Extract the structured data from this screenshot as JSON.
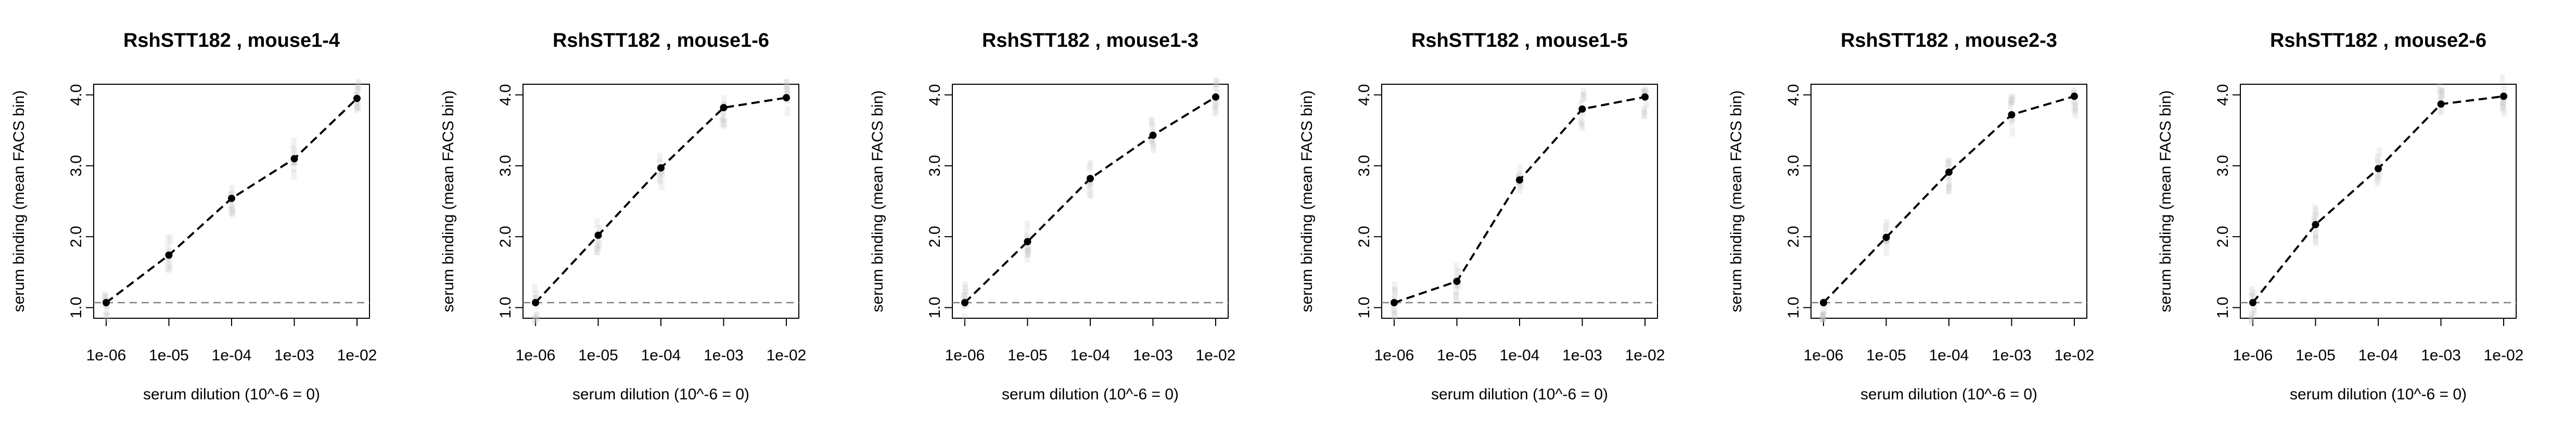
{
  "chart_data": [
    {
      "type": "line",
      "title": "RshSTT182 , mouse1-4",
      "xlabel": "serum dilution (10^-6 = 0)",
      "ylabel": "serum binding (mean FACS bin)",
      "x": [
        1e-06,
        1e-05,
        0.0001,
        0.001,
        0.01
      ],
      "x_tick_labels": [
        "1e-06",
        "1e-05",
        "1e-04",
        "1e-03",
        "1e-02"
      ],
      "y_ticks": [
        1.0,
        2.0,
        3.0,
        4.0
      ],
      "y_tick_labels": [
        "1.0",
        "2.0",
        "3.0",
        "4.0"
      ],
      "ylim": [
        0.85,
        4.15
      ],
      "series": [
        {
          "name": "mean",
          "values": [
            1.07,
            1.74,
            2.54,
            3.1,
            3.95
          ]
        }
      ],
      "baseline": 1.07,
      "grid": false
    },
    {
      "type": "line",
      "title": "RshSTT182 , mouse1-6",
      "xlabel": "serum dilution (10^-6 = 0)",
      "ylabel": "serum binding (mean FACS bin)",
      "x": [
        1e-06,
        1e-05,
        0.0001,
        0.001,
        0.01
      ],
      "x_tick_labels": [
        "1e-06",
        "1e-05",
        "1e-04",
        "1e-03",
        "1e-02"
      ],
      "y_ticks": [
        1.0,
        2.0,
        3.0,
        4.0
      ],
      "y_tick_labels": [
        "1.0",
        "2.0",
        "3.0",
        "4.0"
      ],
      "ylim": [
        0.85,
        4.15
      ],
      "series": [
        {
          "name": "mean",
          "values": [
            1.07,
            2.02,
            2.97,
            3.82,
            3.96
          ]
        }
      ],
      "baseline": 1.07,
      "grid": false
    },
    {
      "type": "line",
      "title": "RshSTT182 , mouse1-3",
      "xlabel": "serum dilution (10^-6 = 0)",
      "ylabel": "serum binding (mean FACS bin)",
      "x": [
        1e-06,
        1e-05,
        0.0001,
        0.001,
        0.01
      ],
      "x_tick_labels": [
        "1e-06",
        "1e-05",
        "1e-04",
        "1e-03",
        "1e-02"
      ],
      "y_ticks": [
        1.0,
        2.0,
        3.0,
        4.0
      ],
      "y_tick_labels": [
        "1.0",
        "2.0",
        "3.0",
        "4.0"
      ],
      "ylim": [
        0.85,
        4.15
      ],
      "series": [
        {
          "name": "mean",
          "values": [
            1.07,
            1.93,
            2.82,
            3.43,
            3.97
          ]
        }
      ],
      "baseline": 1.07,
      "grid": false
    },
    {
      "type": "line",
      "title": "RshSTT182 , mouse1-5",
      "xlabel": "serum dilution (10^-6 = 0)",
      "ylabel": "serum binding (mean FACS bin)",
      "x": [
        1e-06,
        1e-05,
        0.0001,
        0.001,
        0.01
      ],
      "x_tick_labels": [
        "1e-06",
        "1e-05",
        "1e-04",
        "1e-03",
        "1e-02"
      ],
      "y_ticks": [
        1.0,
        2.0,
        3.0,
        4.0
      ],
      "y_tick_labels": [
        "1.0",
        "2.0",
        "3.0",
        "4.0"
      ],
      "ylim": [
        0.85,
        4.15
      ],
      "series": [
        {
          "name": "mean",
          "values": [
            1.07,
            1.37,
            2.8,
            3.8,
            3.97
          ]
        }
      ],
      "baseline": 1.07,
      "grid": false
    },
    {
      "type": "line",
      "title": "RshSTT182 , mouse2-3",
      "xlabel": "serum dilution (10^-6 = 0)",
      "ylabel": "serum binding (mean FACS bin)",
      "x": [
        1e-06,
        1e-05,
        0.0001,
        0.001,
        0.01
      ],
      "x_tick_labels": [
        "1e-06",
        "1e-05",
        "1e-04",
        "1e-03",
        "1e-02"
      ],
      "y_ticks": [
        1.0,
        2.0,
        3.0,
        4.0
      ],
      "y_tick_labels": [
        "1.0",
        "2.0",
        "3.0",
        "4.0"
      ],
      "ylim": [
        0.85,
        4.15
      ],
      "series": [
        {
          "name": "mean",
          "values": [
            1.07,
            1.99,
            2.91,
            3.72,
            3.98
          ]
        }
      ],
      "baseline": 1.07,
      "grid": false
    },
    {
      "type": "line",
      "title": "RshSTT182 , mouse2-6",
      "xlabel": "serum dilution (10^-6 = 0)",
      "ylabel": "serum binding (mean FACS bin)",
      "x": [
        1e-06,
        1e-05,
        0.0001,
        0.001,
        0.01
      ],
      "x_tick_labels": [
        "1e-06",
        "1e-05",
        "1e-04",
        "1e-03",
        "1e-02"
      ],
      "y_ticks": [
        1.0,
        2.0,
        3.0,
        4.0
      ],
      "y_tick_labels": [
        "1.0",
        "2.0",
        "3.0",
        "4.0"
      ],
      "ylim": [
        0.85,
        4.15
      ],
      "series": [
        {
          "name": "mean",
          "values": [
            1.07,
            2.17,
            2.96,
            3.87,
            3.98
          ]
        }
      ],
      "baseline": 1.07,
      "grid": false
    }
  ],
  "colors": {
    "line": "#000000",
    "points": "#000000",
    "baseline": "#7f7f7f",
    "spread": "#bdbdbd",
    "axes": "#000000"
  }
}
